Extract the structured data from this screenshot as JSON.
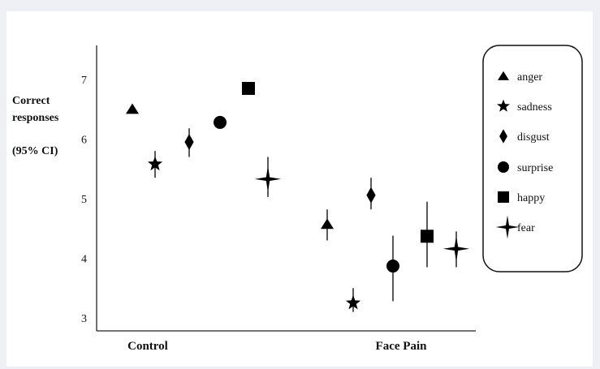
{
  "chart_data": {
    "type": "scatter",
    "title": "",
    "ylabel_lines": [
      "Correct",
      "responses",
      "(95% CI)"
    ],
    "xlabel": "",
    "groups": [
      "Control",
      "Face Pain"
    ],
    "ylim": [
      2.8,
      7.6
    ],
    "yticks": [
      3,
      4,
      5,
      6,
      7
    ],
    "grid": false,
    "legend_position": "top-right",
    "series": [
      {
        "name": "anger",
        "marker": "triangle",
        "points": [
          {
            "group": "Control",
            "y": 6.5,
            "lo": 6.5,
            "hi": 6.5
          },
          {
            "group": "Face Pain",
            "y": 4.57,
            "lo": 4.3,
            "hi": 4.82
          }
        ]
      },
      {
        "name": "sadness",
        "marker": "star5",
        "points": [
          {
            "group": "Control",
            "y": 5.58,
            "lo": 5.35,
            "hi": 5.8
          },
          {
            "group": "Face Pain",
            "y": 3.25,
            "lo": 3.1,
            "hi": 3.5
          }
        ]
      },
      {
        "name": "disgust",
        "marker": "diamond",
        "points": [
          {
            "group": "Control",
            "y": 5.95,
            "lo": 5.7,
            "hi": 6.18
          }
        ]
      },
      {
        "name": "surprise",
        "marker": "circle",
        "points": [
          {
            "group": "Control",
            "y": 6.28,
            "lo": 6.28,
            "hi": 6.28
          }
        ]
      },
      {
        "name": "happy",
        "marker": "square",
        "points": [
          {
            "group": "Control",
            "y": 6.85,
            "lo": 6.85,
            "hi": 6.85
          }
        ]
      },
      {
        "name": "fear",
        "marker": "star4",
        "points": [
          {
            "group": "Control",
            "y": 5.33,
            "lo": 5.03,
            "hi": 5.7
          }
        ]
      }
    ],
    "extra_points": [
      {
        "series": "disgust",
        "group": "Face Pain",
        "y": 5.06,
        "lo": 4.82,
        "hi": 5.35
      },
      {
        "series": "surprise",
        "group": "Face Pain",
        "y": 3.87,
        "lo": 3.28,
        "hi": 4.38
      },
      {
        "series": "happy",
        "group": "Face Pain",
        "y": 4.37,
        "lo": 3.85,
        "hi": 4.95
      },
      {
        "series": "fear",
        "group": "Face Pain",
        "y": 4.16,
        "lo": 3.85,
        "hi": 4.45
      }
    ],
    "colors": {
      "marker": "#000000",
      "axis": "#222222",
      "legend_border": "#111111"
    }
  }
}
